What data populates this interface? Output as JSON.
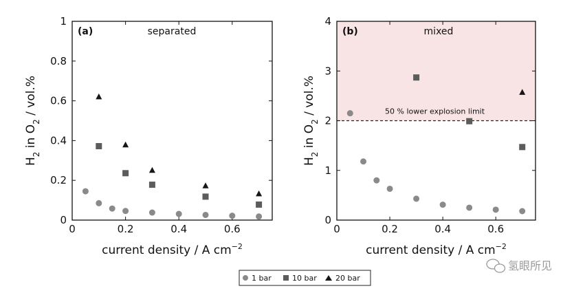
{
  "chart_data": [
    {
      "type": "scatter",
      "panel_label": "(a)",
      "title": "separated",
      "xlabel": "current density / A cm",
      "xlabel_exp": "−2",
      "ylabel_parts": [
        "H",
        "2",
        " in O",
        "2",
        " / vol.%"
      ],
      "xlim": [
        0,
        0.75
      ],
      "ylim": [
        0,
        1
      ],
      "xticks": [
        "0",
        "0.2",
        "0.4",
        "0.6"
      ],
      "xtick_values": [
        0,
        0.2,
        0.4,
        0.6
      ],
      "yticks": [
        "0",
        "0.2",
        "0.4",
        "0.6",
        "0.8",
        "1"
      ],
      "ytick_values": [
        0,
        0.2,
        0.4,
        0.6,
        0.8,
        1
      ],
      "series": [
        {
          "name": "1 bar",
          "marker": "circle",
          "x": [
            0.05,
            0.1,
            0.15,
            0.2,
            0.3,
            0.4,
            0.5,
            0.6,
            0.7
          ],
          "y": [
            0.145,
            0.085,
            0.058,
            0.046,
            0.038,
            0.031,
            0.026,
            0.022,
            0.018
          ]
        },
        {
          "name": "10 bar",
          "marker": "square",
          "x": [
            0.1,
            0.2,
            0.3,
            0.5,
            0.7
          ],
          "y": [
            0.372,
            0.236,
            0.178,
            0.118,
            0.078
          ]
        },
        {
          "name": "20 bar",
          "marker": "triangle",
          "x": [
            0.1,
            0.2,
            0.3,
            0.5,
            0.7
          ],
          "y": [
            0.62,
            0.378,
            0.25,
            0.172,
            0.132
          ]
        }
      ]
    },
    {
      "type": "scatter",
      "panel_label": "(b)",
      "title": "mixed",
      "xlabel": "current density / A cm",
      "xlabel_exp": "−2",
      "ylabel_parts": [
        "H",
        "2",
        " in O",
        "2",
        " / vol.%"
      ],
      "xlim": [
        0,
        0.75
      ],
      "ylim": [
        0,
        4
      ],
      "xticks": [
        "0",
        "0.2",
        "0.4",
        "0.6"
      ],
      "xtick_values": [
        0,
        0.2,
        0.4,
        0.6
      ],
      "yticks": [
        "0",
        "1",
        "2",
        "3",
        "4"
      ],
      "ytick_values": [
        0,
        1,
        2,
        3,
        4
      ],
      "threshold": {
        "value": 2,
        "label": "50 % lower explosion limit",
        "shade_color": "#f9e4e5"
      },
      "series": [
        {
          "name": "1 bar",
          "marker": "circle",
          "x": [
            0.05,
            0.1,
            0.15,
            0.2,
            0.3,
            0.4,
            0.5,
            0.6,
            0.7
          ],
          "y": [
            2.15,
            1.18,
            0.8,
            0.63,
            0.43,
            0.31,
            0.25,
            0.21,
            0.18
          ]
        },
        {
          "name": "10 bar",
          "marker": "square",
          "x": [
            0.3,
            0.5,
            0.7
          ],
          "y": [
            2.87,
            1.99,
            1.47
          ]
        },
        {
          "name": "20 bar",
          "marker": "triangle",
          "x": [
            0.7
          ],
          "y": [
            2.57
          ]
        }
      ]
    }
  ],
  "legend": [
    {
      "label": "1 bar",
      "marker": "circle"
    },
    {
      "label": "10 bar",
      "marker": "square"
    },
    {
      "label": "20 bar",
      "marker": "triangle"
    }
  ],
  "colors": {
    "circle": "#8a8a8a",
    "square": "#5c5c5c",
    "triangle": "#161616"
  },
  "watermark": "氢眼所见"
}
